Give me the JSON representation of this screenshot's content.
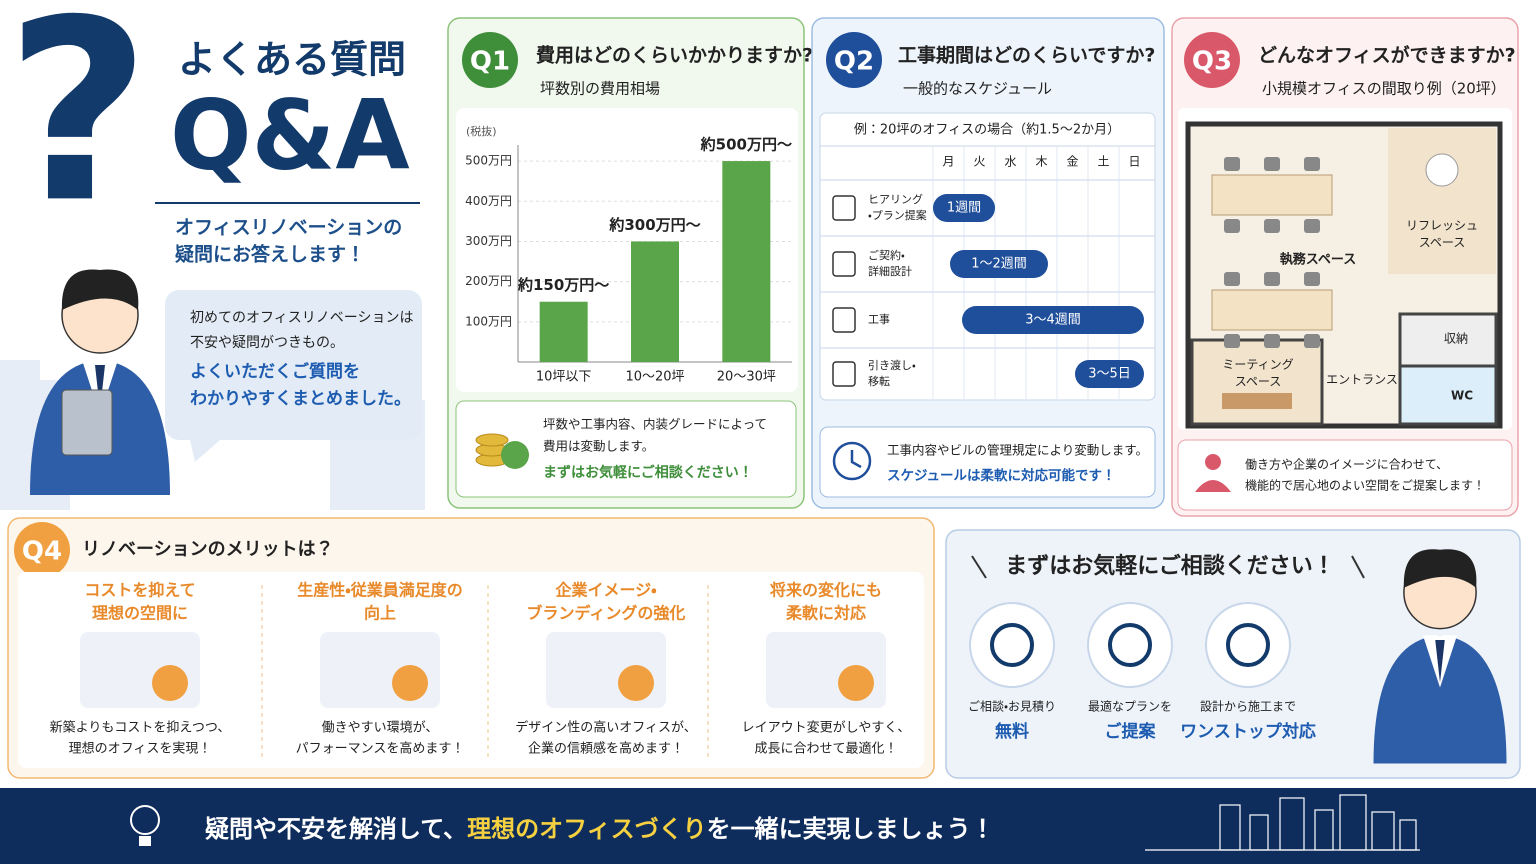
{
  "header": {
    "title": "よくある質問",
    "heading": "Q&A",
    "subtitle": [
      "オフィスリノベーションの",
      "疑問にお答えします！"
    ]
  },
  "intro": {
    "lines": [
      "初めてのオフィスリノベーションは",
      "不安や疑問がつきもの。"
    ],
    "highlight": [
      "よくいただくご質問を",
      "わかりやすくまとめました。"
    ]
  },
  "q1": {
    "badge": "Q1",
    "question": "費用はどのくらいかかりますか?",
    "subtitle": "坪数別の費用相場",
    "chart": {
      "type": "bar",
      "unit": "(税抜)",
      "categories": [
        "10坪以下",
        "10〜20坪",
        "20〜30坪"
      ],
      "values": [
        150,
        300,
        500
      ],
      "value_labels": [
        "約150万円〜",
        "約300万円〜",
        "約500万円〜"
      ],
      "color": "#5aa54a",
      "ylim": [
        0,
        540
      ],
      "yticks": [
        {
          "value": 100,
          "label": "100万円"
        },
        {
          "value": 200,
          "label": "200万円"
        },
        {
          "value": 300,
          "label": "300万円"
        },
        {
          "value": 400,
          "label": "400万円"
        },
        {
          "value": 500,
          "label": "500万円"
        }
      ],
      "grid": true
    },
    "note": [
      "坪数や工事内容、内装グレードによって",
      "費用は変動します。"
    ],
    "cta": "まずはお気軽にご相談ください！"
  },
  "q2": {
    "badge": "Q2",
    "question": "工事期間はどのくらいですか?",
    "subtitle": "一般的なスケジュール",
    "table": {
      "caption": "例：20坪のオフィスの場合（約1.5〜2か月）",
      "days": [
        "月",
        "火",
        "水",
        "木",
        "金",
        "土",
        "日"
      ],
      "rows": [
        {
          "label": [
            "ヒアリング",
            "・プラン提案"
          ],
          "duration": "1週間"
        },
        {
          "label": [
            "ご契約・",
            "詳細設計"
          ],
          "duration": "1〜2週間"
        },
        {
          "label": [
            "工事"
          ],
          "duration": "3〜4週間"
        },
        {
          "label": [
            "引き渡し・",
            "移転"
          ],
          "duration": "3〜5日"
        }
      ]
    },
    "note": "工事内容やビルの管理規定により変動します。",
    "highlight": "スケジュールは柔軟に対応可能です！"
  },
  "q3": {
    "badge": "Q3",
    "question": "どんなオフィスができますか?",
    "subtitle": "小規模オフィスの間取り例（20坪）",
    "rooms": {
      "office": "執務スペース",
      "refresh": [
        "リフレッシュ",
        "スペース"
      ],
      "storage": "収納",
      "meeting": [
        "ミーティング",
        "スペース"
      ],
      "entrance": "エントランス",
      "wc": "WC"
    },
    "note": [
      "働き方や企業のイメージに合わせて、",
      "機能的で居心地のよい空間をご提案します！"
    ]
  },
  "q4": {
    "badge": "Q4",
    "title": "リノベーションのメリットは？",
    "items": [
      {
        "title": [
          "コストを抑えて",
          "理想の空間に"
        ],
        "text": [
          "新築よりもコストを抑えつつ、",
          "理想のオフィスを実現！"
        ]
      },
      {
        "title": [
          "生産性・従業員満足度の",
          "向上"
        ],
        "text": [
          "働きやすい環境が、",
          "パフォーマンスを高めます！"
        ]
      },
      {
        "title": [
          "企業イメージ・",
          "ブランディングの強化"
        ],
        "text": [
          "デザイン性の高いオフィスが、",
          "企業の信頼感を高めます！"
        ]
      },
      {
        "title": [
          "将来の変化にも",
          "柔軟に対応"
        ],
        "text": [
          "レイアウト変更がしやすく、",
          "成長に合わせて最適化！"
        ]
      }
    ]
  },
  "contact": {
    "title": "まずはお気軽にご相談ください！",
    "items": [
      {
        "caption": "ご相談・お見積り",
        "label": "無料"
      },
      {
        "caption": "最適なプランを",
        "label": "ご提案"
      },
      {
        "caption": "設計から施工まで",
        "label": "ワンストップ対応"
      }
    ]
  },
  "footer": {
    "lead": "疑問や不安を解消して、",
    "highlight": "理想のオフィスづくり",
    "tail": "を一緒に実現しましょう！"
  }
}
